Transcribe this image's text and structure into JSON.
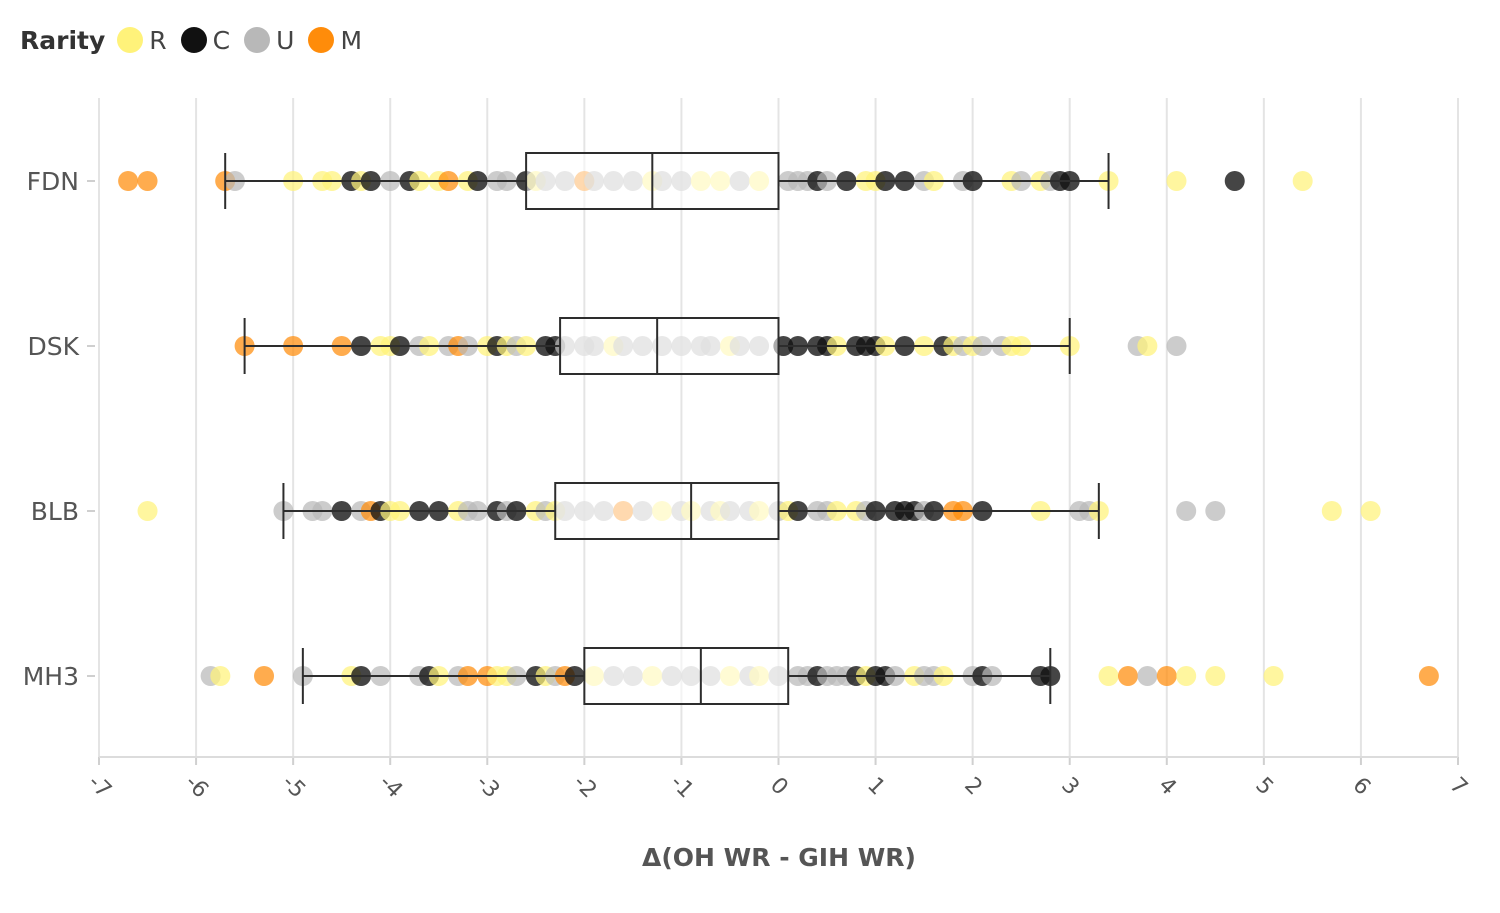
{
  "legend": {
    "title": "Rarity",
    "items": [
      {
        "key": "R",
        "label": "R",
        "color": "#FFF27A"
      },
      {
        "key": "C",
        "label": "C",
        "color": "#111111"
      },
      {
        "key": "U",
        "label": "U",
        "color": "#B8B8B8"
      },
      {
        "key": "M",
        "label": "M",
        "color": "#FF8C0A"
      }
    ]
  },
  "chart_data": {
    "type": "scatter",
    "subtype": "horizontal box plot with jittered strip points",
    "title": "",
    "xlabel": "Δ(OH WR - GIH WR)",
    "ylabel": "",
    "xlim": [
      -7,
      7
    ],
    "x_ticks": [
      -7,
      -6,
      -5,
      -4,
      -3,
      -2,
      -1,
      0,
      1,
      2,
      3,
      4,
      5,
      6,
      7
    ],
    "x_tick_labels": [
      "-7",
      "-6",
      "-5",
      "-4",
      "-3",
      "-2",
      "-1",
      "0",
      "1",
      "2",
      "3",
      "4",
      "5",
      "6",
      "7"
    ],
    "grid": "vertical",
    "legend_position": "top-left",
    "categories": [
      "FDN",
      "DSK",
      "BLB",
      "MH3"
    ],
    "boxes": [
      {
        "category": "FDN",
        "whisker_low": -5.7,
        "q1": -2.6,
        "median": -1.3,
        "q3": 0.0,
        "whisker_high": 3.4
      },
      {
        "category": "DSK",
        "whisker_low": -5.5,
        "q1": -2.25,
        "median": -1.25,
        "q3": 0.0,
        "whisker_high": 3.0
      },
      {
        "category": "BLB",
        "whisker_low": -5.1,
        "q1": -2.3,
        "median": -0.9,
        "q3": 0.0,
        "whisker_high": 3.3
      },
      {
        "category": "MH3",
        "whisker_low": -4.9,
        "q1": -2.0,
        "median": -0.8,
        "q3": 0.1,
        "whisker_high": 2.8
      }
    ],
    "series": [
      {
        "category": "FDN",
        "points": [
          [
            "M",
            -6.7
          ],
          [
            "M",
            -6.5
          ],
          [
            "M",
            -5.7
          ],
          [
            "U",
            -5.6
          ],
          [
            "R",
            -5.0
          ],
          [
            "R",
            -4.7
          ],
          [
            "R",
            -4.6
          ],
          [
            "C",
            -4.4
          ],
          [
            "R",
            -4.3
          ],
          [
            "C",
            -4.2
          ],
          [
            "U",
            -4.0
          ],
          [
            "C",
            -3.8
          ],
          [
            "R",
            -3.7
          ],
          [
            "R",
            -3.5
          ],
          [
            "M",
            -3.4
          ],
          [
            "R",
            -3.2
          ],
          [
            "C",
            -3.1
          ],
          [
            "U",
            -2.9
          ],
          [
            "U",
            -2.8
          ],
          [
            "C",
            -2.6
          ],
          [
            "R",
            -2.5
          ],
          [
            "U",
            -2.4
          ],
          [
            "U",
            -2.2
          ],
          [
            "M",
            -2.0
          ],
          [
            "U",
            -1.9
          ],
          [
            "U",
            -1.7
          ],
          [
            "U",
            -1.5
          ],
          [
            "R",
            -1.3
          ],
          [
            "U",
            -1.2
          ],
          [
            "U",
            -1.0
          ],
          [
            "R",
            -0.8
          ],
          [
            "R",
            -0.6
          ],
          [
            "U",
            -0.4
          ],
          [
            "R",
            -0.2
          ],
          [
            "U",
            0.1
          ],
          [
            "U",
            0.2
          ],
          [
            "U",
            0.3
          ],
          [
            "C",
            0.4
          ],
          [
            "U",
            0.5
          ],
          [
            "C",
            0.7
          ],
          [
            "R",
            0.9
          ],
          [
            "R",
            1.0
          ],
          [
            "C",
            1.1
          ],
          [
            "C",
            1.3
          ],
          [
            "U",
            1.5
          ],
          [
            "R",
            1.6
          ],
          [
            "U",
            1.9
          ],
          [
            "C",
            2.0
          ],
          [
            "R",
            2.4
          ],
          [
            "U",
            2.5
          ],
          [
            "R",
            2.7
          ],
          [
            "U",
            2.8
          ],
          [
            "C",
            2.9
          ],
          [
            "C",
            3.0
          ],
          [
            "R",
            3.4
          ],
          [
            "R",
            4.1
          ],
          [
            "C",
            4.7
          ],
          [
            "R",
            5.4
          ]
        ]
      },
      {
        "category": "DSK",
        "points": [
          [
            "M",
            -5.5
          ],
          [
            "M",
            -5.0
          ],
          [
            "M",
            -4.5
          ],
          [
            "C",
            -4.3
          ],
          [
            "R",
            -4.1
          ],
          [
            "R",
            -4.0
          ],
          [
            "C",
            -3.9
          ],
          [
            "U",
            -3.7
          ],
          [
            "R",
            -3.6
          ],
          [
            "U",
            -3.4
          ],
          [
            "M",
            -3.3
          ],
          [
            "U",
            -3.2
          ],
          [
            "R",
            -3.0
          ],
          [
            "C",
            -2.9
          ],
          [
            "R",
            -2.8
          ],
          [
            "U",
            -2.7
          ],
          [
            "R",
            -2.6
          ],
          [
            "C",
            -2.4
          ],
          [
            "C",
            -2.3
          ],
          [
            "U",
            -2.2
          ],
          [
            "U",
            -2.0
          ],
          [
            "U",
            -1.9
          ],
          [
            "R",
            -1.7
          ],
          [
            "U",
            -1.6
          ],
          [
            "U",
            -1.4
          ],
          [
            "U",
            -1.2
          ],
          [
            "U",
            -1.0
          ],
          [
            "U",
            -0.8
          ],
          [
            "U",
            -0.7
          ],
          [
            "R",
            -0.5
          ],
          [
            "U",
            -0.4
          ],
          [
            "U",
            -0.2
          ],
          [
            "C",
            0.05
          ],
          [
            "C",
            0.2
          ],
          [
            "C",
            0.4
          ],
          [
            "C",
            0.5
          ],
          [
            "R",
            0.6
          ],
          [
            "C",
            0.8
          ],
          [
            "C",
            0.9
          ],
          [
            "C",
            1.0
          ],
          [
            "R",
            1.1
          ],
          [
            "C",
            1.3
          ],
          [
            "R",
            1.5
          ],
          [
            "C",
            1.7
          ],
          [
            "R",
            1.8
          ],
          [
            "U",
            1.9
          ],
          [
            "R",
            2.0
          ],
          [
            "U",
            2.1
          ],
          [
            "U",
            2.3
          ],
          [
            "R",
            2.4
          ],
          [
            "R",
            2.5
          ],
          [
            "R",
            3.0
          ],
          [
            "U",
            3.7
          ],
          [
            "R",
            3.8
          ],
          [
            "U",
            4.1
          ]
        ]
      },
      {
        "category": "BLB",
        "points": [
          [
            "R",
            -6.5
          ],
          [
            "U",
            -5.1
          ],
          [
            "U",
            -4.8
          ],
          [
            "U",
            -4.7
          ],
          [
            "C",
            -4.5
          ],
          [
            "U",
            -4.3
          ],
          [
            "M",
            -4.2
          ],
          [
            "C",
            -4.1
          ],
          [
            "R",
            -4.0
          ],
          [
            "R",
            -3.9
          ],
          [
            "C",
            -3.7
          ],
          [
            "C",
            -3.5
          ],
          [
            "R",
            -3.3
          ],
          [
            "U",
            -3.2
          ],
          [
            "U",
            -3.1
          ],
          [
            "C",
            -2.9
          ],
          [
            "U",
            -2.8
          ],
          [
            "C",
            -2.7
          ],
          [
            "R",
            -2.5
          ],
          [
            "U",
            -2.4
          ],
          [
            "R",
            -2.3
          ],
          [
            "U",
            -2.2
          ],
          [
            "U",
            -2.0
          ],
          [
            "U",
            -1.8
          ],
          [
            "M",
            -1.6
          ],
          [
            "U",
            -1.4
          ],
          [
            "R",
            -1.2
          ],
          [
            "U",
            -1.0
          ],
          [
            "R",
            -0.9
          ],
          [
            "U",
            -0.7
          ],
          [
            "R",
            -0.6
          ],
          [
            "U",
            -0.5
          ],
          [
            "U",
            -0.3
          ],
          [
            "R",
            -0.2
          ],
          [
            "U",
            0.0
          ],
          [
            "R",
            0.1
          ],
          [
            "C",
            0.2
          ],
          [
            "U",
            0.4
          ],
          [
            "U",
            0.5
          ],
          [
            "R",
            0.6
          ],
          [
            "R",
            0.8
          ],
          [
            "U",
            0.9
          ],
          [
            "C",
            1.0
          ],
          [
            "C",
            1.2
          ],
          [
            "C",
            1.3
          ],
          [
            "C",
            1.4
          ],
          [
            "U",
            1.5
          ],
          [
            "C",
            1.6
          ],
          [
            "M",
            1.8
          ],
          [
            "M",
            1.9
          ],
          [
            "C",
            2.1
          ],
          [
            "R",
            2.7
          ],
          [
            "U",
            3.1
          ],
          [
            "U",
            3.2
          ],
          [
            "R",
            3.3
          ],
          [
            "U",
            4.2
          ],
          [
            "U",
            4.5
          ],
          [
            "R",
            5.7
          ],
          [
            "R",
            6.1
          ]
        ]
      },
      {
        "category": "MH3",
        "points": [
          [
            "U",
            -5.85
          ],
          [
            "R",
            -5.75
          ],
          [
            "M",
            -5.3
          ],
          [
            "U",
            -4.9
          ],
          [
            "R",
            -4.4
          ],
          [
            "C",
            -4.3
          ],
          [
            "U",
            -4.1
          ],
          [
            "U",
            -3.7
          ],
          [
            "C",
            -3.6
          ],
          [
            "R",
            -3.5
          ],
          [
            "U",
            -3.3
          ],
          [
            "M",
            -3.2
          ],
          [
            "M",
            -3.0
          ],
          [
            "R",
            -2.9
          ],
          [
            "R",
            -2.8
          ],
          [
            "U",
            -2.7
          ],
          [
            "C",
            -2.5
          ],
          [
            "R",
            -2.4
          ],
          [
            "U",
            -2.3
          ],
          [
            "M",
            -2.2
          ],
          [
            "C",
            -2.1
          ],
          [
            "R",
            -1.9
          ],
          [
            "U",
            -1.7
          ],
          [
            "U",
            -1.5
          ],
          [
            "R",
            -1.3
          ],
          [
            "U",
            -1.1
          ],
          [
            "U",
            -0.9
          ],
          [
            "U",
            -0.7
          ],
          [
            "R",
            -0.5
          ],
          [
            "U",
            -0.3
          ],
          [
            "R",
            -0.2
          ],
          [
            "U",
            0.0
          ],
          [
            "U",
            0.2
          ],
          [
            "U",
            0.3
          ],
          [
            "C",
            0.4
          ],
          [
            "U",
            0.5
          ],
          [
            "U",
            0.6
          ],
          [
            "U",
            0.7
          ],
          [
            "C",
            0.8
          ],
          [
            "R",
            0.9
          ],
          [
            "C",
            1.0
          ],
          [
            "C",
            1.1
          ],
          [
            "U",
            1.2
          ],
          [
            "R",
            1.4
          ],
          [
            "U",
            1.5
          ],
          [
            "U",
            1.6
          ],
          [
            "R",
            1.7
          ],
          [
            "U",
            2.0
          ],
          [
            "C",
            2.1
          ],
          [
            "U",
            2.2
          ],
          [
            "C",
            2.7
          ],
          [
            "C",
            2.8
          ],
          [
            "R",
            3.4
          ],
          [
            "M",
            3.6
          ],
          [
            "U",
            3.8
          ],
          [
            "M",
            4.0
          ],
          [
            "R",
            4.2
          ],
          [
            "R",
            4.5
          ],
          [
            "R",
            5.1
          ],
          [
            "M",
            6.7
          ]
        ]
      }
    ]
  }
}
